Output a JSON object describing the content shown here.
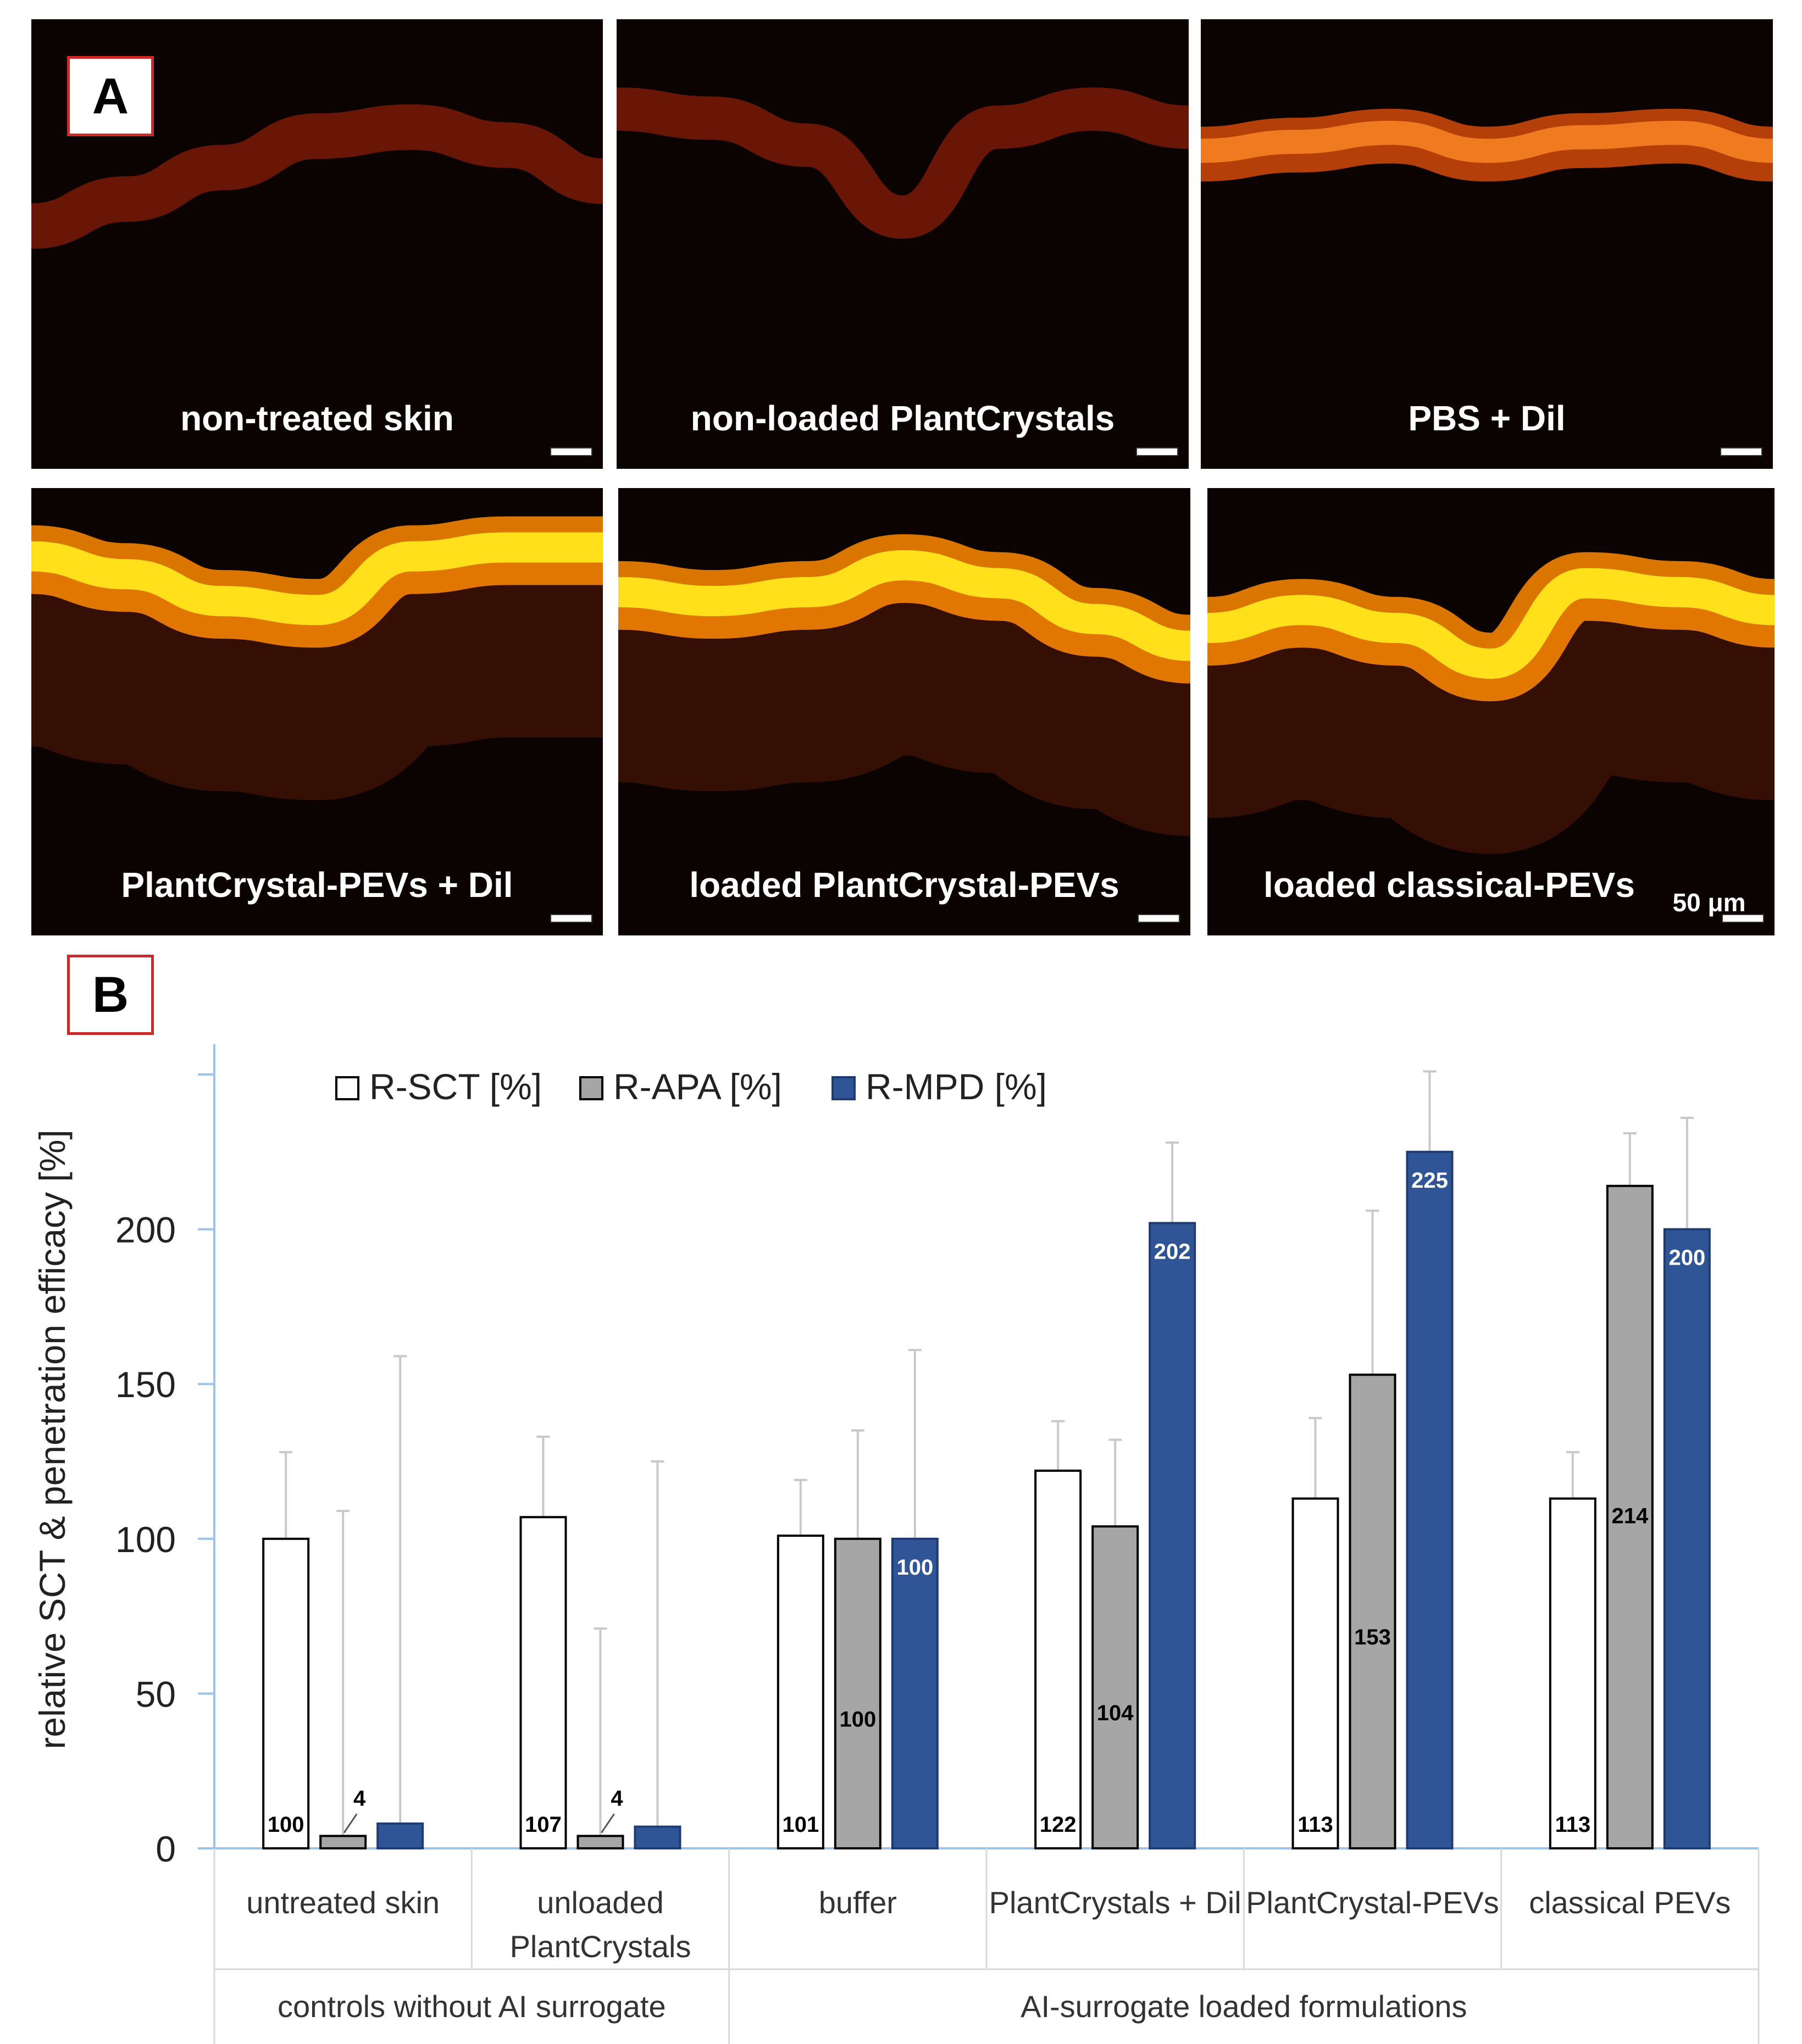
{
  "panel_a": {
    "letter": "A",
    "micrographs": [
      {
        "caption": "non-treated skin",
        "intensity": 0.25,
        "profile": "gentle"
      },
      {
        "caption": "non-loaded PlantCrystals",
        "intensity": 0.18,
        "profile": "dip"
      },
      {
        "caption": "PBS + Dil",
        "intensity": 0.55,
        "profile": "flat"
      },
      {
        "caption": "PlantCrystal-PEVs + Dil",
        "intensity": 1.0,
        "profile": "valley"
      },
      {
        "caption": "loaded PlantCrystal-PEVs",
        "intensity": 1.0,
        "profile": "bump"
      },
      {
        "caption": "loaded classical-PEVs",
        "intensity": 1.0,
        "profile": "wave"
      }
    ],
    "scale_bar_label": "50 μm"
  },
  "panel_b_letter": "B",
  "chart_data": {
    "type": "bar",
    "ylabel": "relative SCT & penetration efficacy [%]",
    "ylim": [
      0,
      250
    ],
    "yticks": [
      0,
      50,
      100,
      150,
      200
    ],
    "grid": false,
    "legend_position": "top-left",
    "categories": [
      "untreated skin",
      "unloaded PlantCrystals",
      "buffer",
      "PlantCrystals + Dil",
      "PlantCrystal-PEVs",
      "classical PEVs"
    ],
    "category_lines": [
      [
        "untreated skin"
      ],
      [
        "unloaded",
        "PlantCrystals"
      ],
      [
        "buffer"
      ],
      [
        "PlantCrystals + Dil"
      ],
      [
        "PlantCrystal-PEVs"
      ],
      [
        "classical PEVs"
      ]
    ],
    "groups": [
      {
        "label": "controls without AI surrogate",
        "span": 2
      },
      {
        "label": "AI-surrogate loaded formulations",
        "span": 4
      }
    ],
    "series": [
      {
        "name": "R-SCT [%]",
        "color": "#ffffff",
        "values": [
          100,
          107,
          101,
          122,
          113,
          113
        ],
        "errors": [
          28,
          26,
          18,
          16,
          26,
          15
        ],
        "labels": [
          "100",
          "107",
          "101",
          "122",
          "113",
          "113"
        ]
      },
      {
        "name": "R-APA [%]",
        "color": "#a6a6a6",
        "values": [
          4,
          4,
          100,
          104,
          153,
          214
        ],
        "errors": [
          105,
          67,
          35,
          28,
          53,
          17
        ],
        "labels": [
          "4",
          "4",
          "100",
          "104",
          "153",
          "214"
        ]
      },
      {
        "name": "R-MPD [%]",
        "color": "#2f5597",
        "values": [
          8,
          7,
          100,
          202,
          225,
          200
        ],
        "errors": [
          151,
          118,
          61,
          26,
          26,
          36
        ],
        "labels": [
          "",
          "",
          "100",
          "202",
          "225",
          "200"
        ]
      }
    ]
  }
}
